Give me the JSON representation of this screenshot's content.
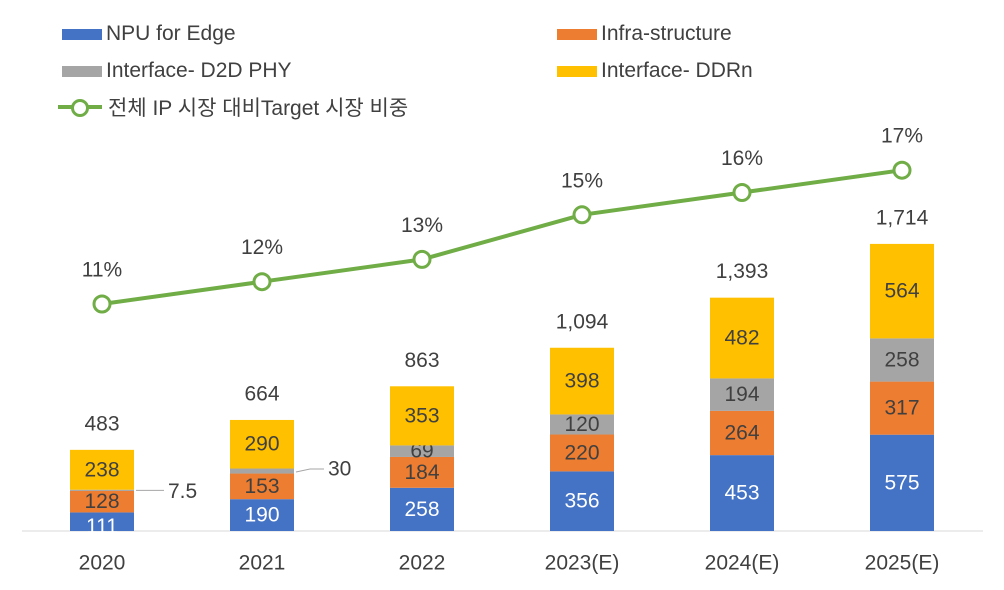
{
  "legend": {
    "npu": "NPU for Edge",
    "infra": "Infra-structure",
    "d2d": "Interface- D2D PHY",
    "ddr": "Interface- DDRn",
    "share": "전체 IP 시장 대비Target 시장 비중"
  },
  "colors": {
    "npu": "#4472c4",
    "infra": "#ed7d31",
    "d2d": "#a5a5a5",
    "ddr": "#ffc000",
    "line": "#70ad47"
  },
  "chart_data": {
    "type": "bar",
    "stacked": true,
    "categories": [
      "2020",
      "2021",
      "2022",
      "2023(E)",
      "2024(E)",
      "2025(E)"
    ],
    "series": [
      {
        "name": "NPU for Edge",
        "values": [
          111,
          190,
          258,
          356,
          453,
          575
        ],
        "labels": [
          "111",
          "190",
          "258",
          "356",
          "453",
          "575"
        ]
      },
      {
        "name": "Infra-structure",
        "values": [
          128,
          153,
          184,
          220,
          264,
          317
        ],
        "labels": [
          "128",
          "153",
          "184",
          "220",
          "264",
          "317"
        ]
      },
      {
        "name": "Interface- D2D PHY",
        "values": [
          7.5,
          30,
          69,
          120,
          194,
          258
        ],
        "labels": [
          "7.5",
          "30",
          "69",
          "120",
          "194",
          "258"
        ]
      },
      {
        "name": "Interface- DDRn",
        "values": [
          238,
          290,
          353,
          398,
          482,
          564
        ],
        "labels": [
          "238",
          "290",
          "353",
          "398",
          "482",
          "564"
        ]
      }
    ],
    "totals": [
      483,
      664,
      863,
      1094,
      1393,
      1714
    ],
    "total_labels": [
      "483",
      "664",
      "863",
      "1,094",
      "1,393",
      "1,714"
    ],
    "line": {
      "name": "전체 IP 시장 대비Target 시장 비중",
      "values": [
        11,
        12,
        13,
        15,
        16,
        17
      ],
      "labels": [
        "11%",
        "12%",
        "13%",
        "15%",
        "16%",
        "17%"
      ]
    },
    "legend_position": "top",
    "grid": false
  }
}
